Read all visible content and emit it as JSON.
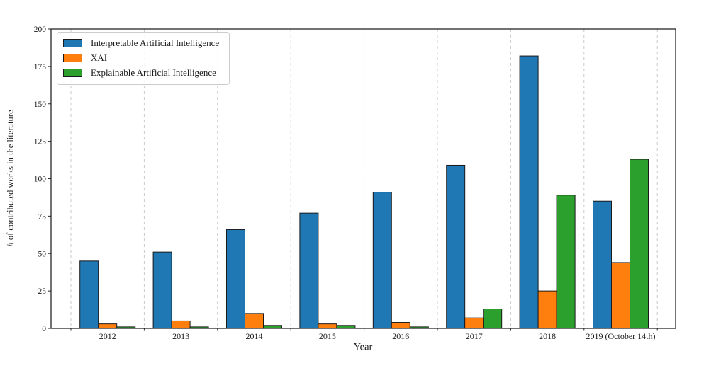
{
  "chart_data": {
    "type": "bar",
    "title": "",
    "xlabel": "Year",
    "ylabel": "# of contributed works in the literature",
    "categories": [
      "2012",
      "2013",
      "2014",
      "2015",
      "2016",
      "2017",
      "2018",
      "2019 (October 14th)"
    ],
    "series": [
      {
        "name": "Interpretable Artificial Intelligence",
        "color": "#1f77b4",
        "values": [
          45,
          51,
          66,
          77,
          91,
          109,
          182,
          85
        ]
      },
      {
        "name": "XAI",
        "color": "#ff7f0e",
        "values": [
          3,
          5,
          10,
          3,
          4,
          7,
          25,
          44
        ]
      },
      {
        "name": "Explainable Artificial Intelligence",
        "color": "#2ca02c",
        "values": [
          1,
          1,
          2,
          2,
          1,
          13,
          89,
          113
        ]
      }
    ],
    "ylim": [
      0,
      200
    ],
    "yticks": [
      0,
      25,
      50,
      75,
      100,
      125,
      150,
      175,
      200
    ],
    "grid": "vertical-dashed-between-groups",
    "legend_position": "upper-left",
    "colors": {
      "bar_edge": "#1a1a1a",
      "grid_line": "#c9c9c9",
      "axis_frame": "#262626",
      "text": "#1a1a1a",
      "legend_border": "#cccccc",
      "background": "#ffffff"
    }
  }
}
